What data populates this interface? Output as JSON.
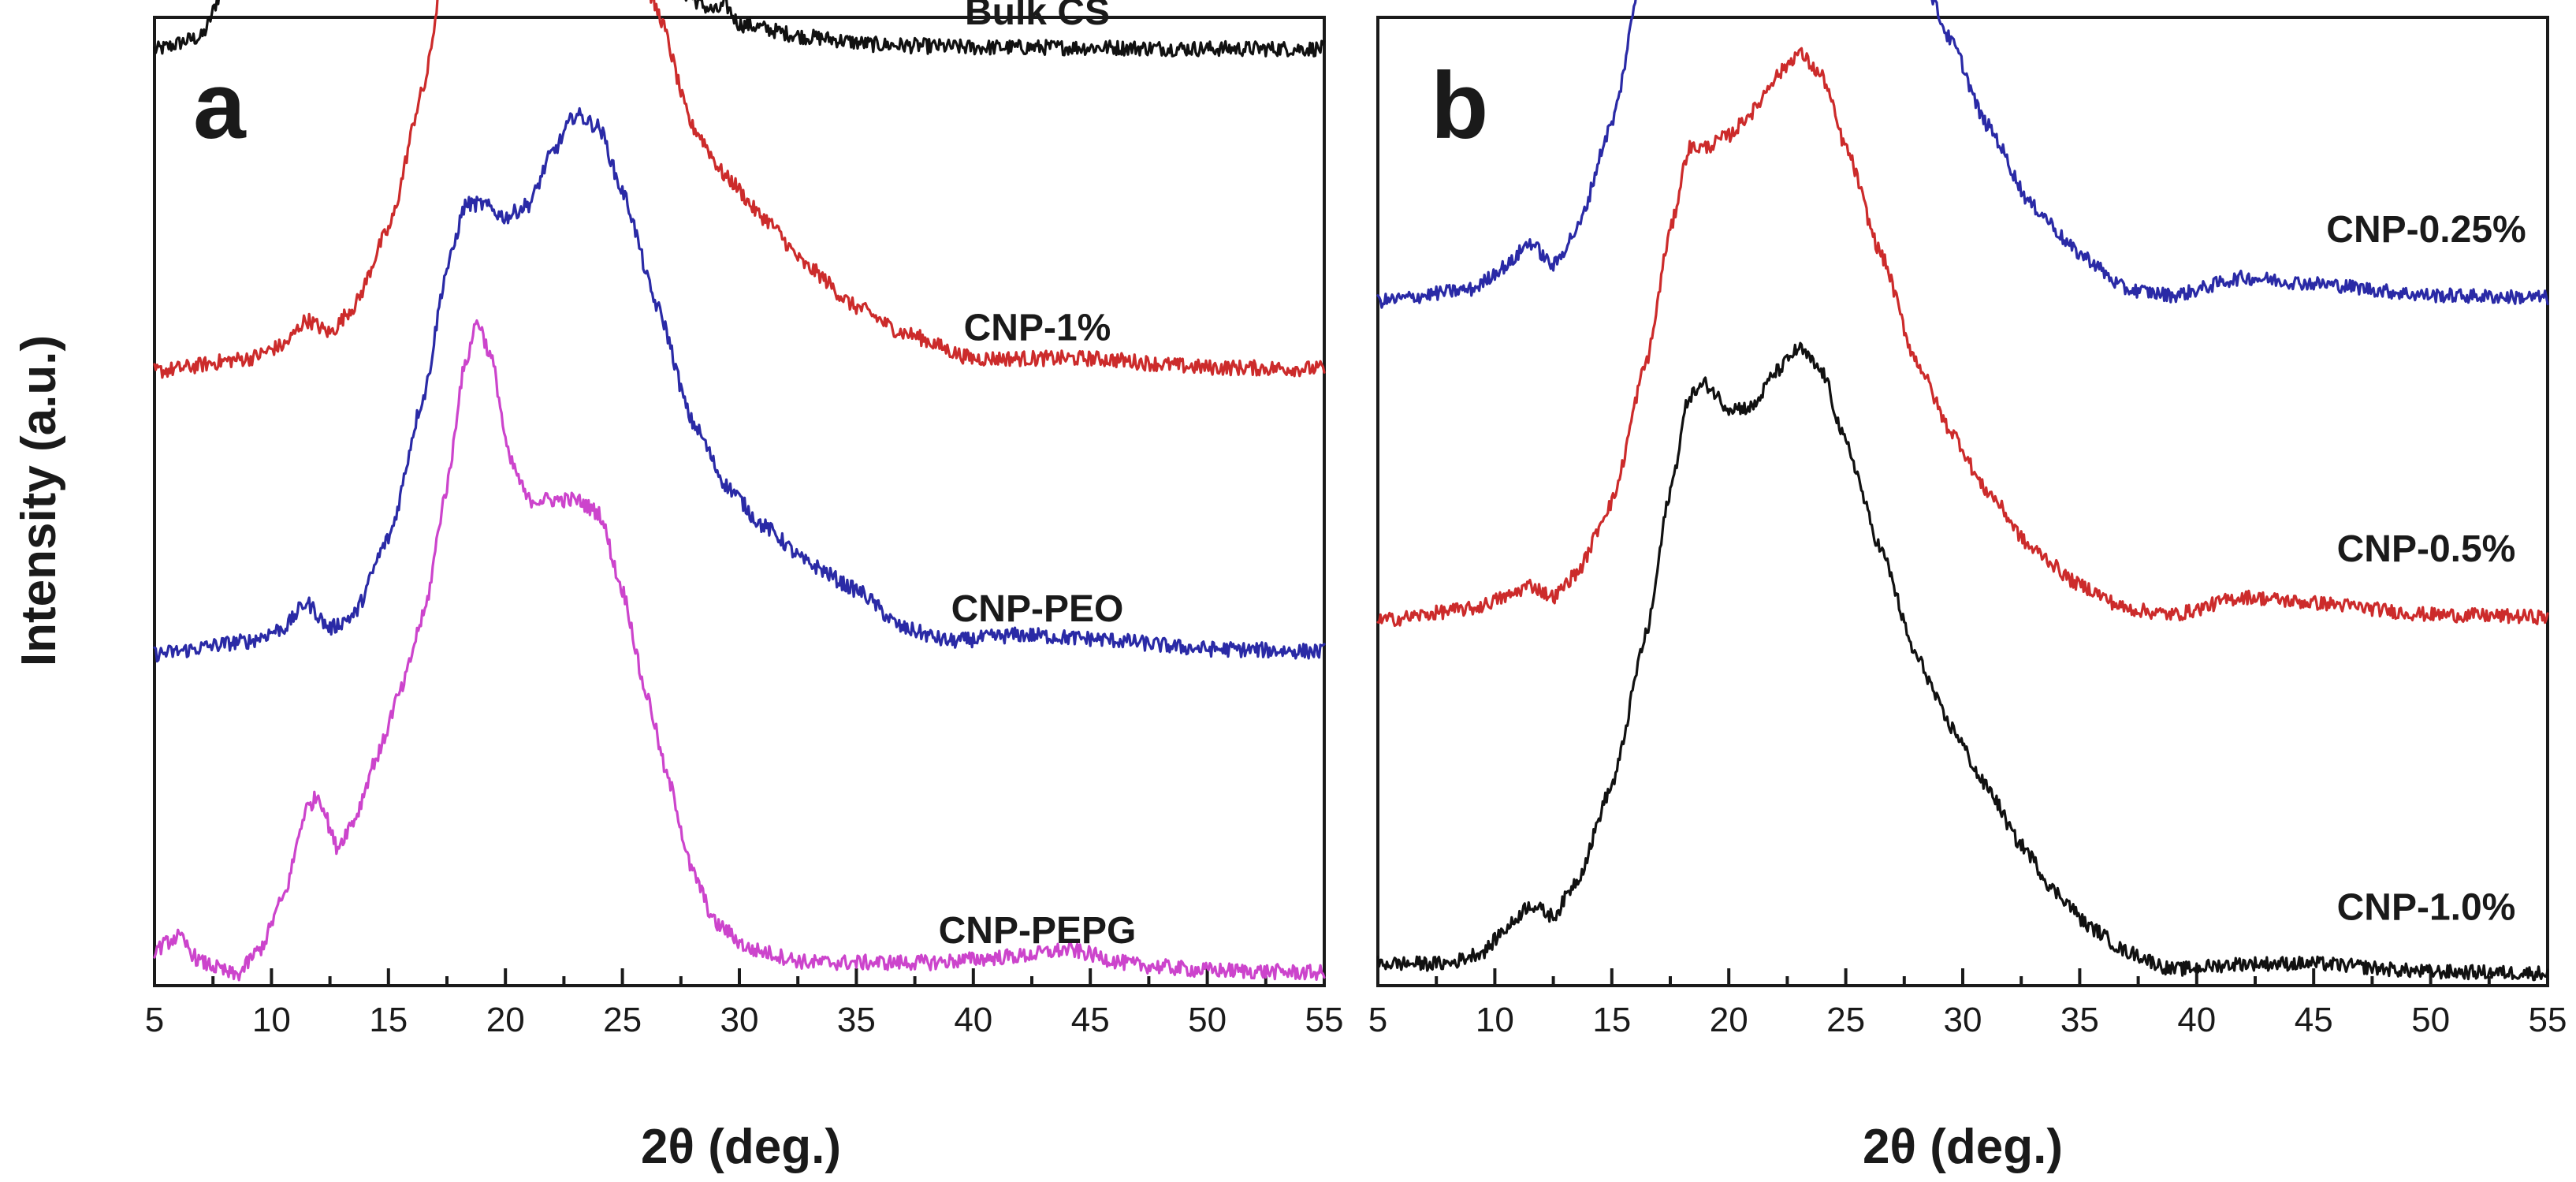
{
  "ylabel": "Intensity (a.u.)",
  "colors": {
    "black": "#111111",
    "red": "#cc2b2b",
    "blue": "#2a2aa6",
    "magenta": "#cc44cc"
  },
  "chart_data": [
    {
      "type": "line",
      "panel": "a",
      "xlabel": "2θ (deg.)",
      "xlim": [
        5,
        55
      ],
      "xticks": [
        "5",
        "10",
        "15",
        "20",
        "25",
        "30",
        "35",
        "40",
        "45",
        "50",
        "55"
      ],
      "grid": false,
      "series": [
        {
          "name": "Bulk CS",
          "color": "#111111",
          "offset": 0.72,
          "points": [
            [
              5,
              0.0
            ],
            [
              7,
              0.01
            ],
            [
              8,
              0.05
            ],
            [
              9,
              0.18
            ],
            [
              9.6,
              0.32
            ],
            [
              10,
              0.35
            ],
            [
              10.6,
              0.3
            ],
            [
              11.5,
              0.17
            ],
            [
              12.5,
              0.1
            ],
            [
              13.5,
              0.14
            ],
            [
              14.5,
              0.22
            ],
            [
              15,
              0.24
            ],
            [
              15.8,
              0.21
            ],
            [
              16.5,
              0.22
            ],
            [
              17.5,
              0.36
            ],
            [
              18.5,
              0.58
            ],
            [
              19.3,
              0.76
            ],
            [
              19.8,
              0.81
            ],
            [
              20.3,
              0.76
            ],
            [
              21,
              0.6
            ],
            [
              21.8,
              0.4
            ],
            [
              22.8,
              0.24
            ],
            [
              24,
              0.15
            ],
            [
              25.5,
              0.09
            ],
            [
              27,
              0.05
            ],
            [
              29,
              0.03
            ],
            [
              29.4,
              0.035
            ],
            [
              30,
              0.02
            ],
            [
              33,
              0.01
            ],
            [
              36,
              0.004
            ],
            [
              40,
              0.002
            ],
            [
              45,
              0.002
            ],
            [
              50,
              0.001
            ],
            [
              55,
              0.001
            ]
          ]
        },
        {
          "name": "CNP-1%",
          "color": "#cc2b2b",
          "offset": 0.47,
          "points": [
            [
              5,
              0.0
            ],
            [
              9,
              0.01
            ],
            [
              10.5,
              0.02
            ],
            [
              11.5,
              0.04
            ],
            [
              12.5,
              0.03
            ],
            [
              13.5,
              0.05
            ],
            [
              15,
              0.11
            ],
            [
              16.5,
              0.22
            ],
            [
              17.5,
              0.33
            ],
            [
              18.3,
              0.4
            ],
            [
              19,
              0.41
            ],
            [
              20,
              0.38
            ],
            [
              21,
              0.38
            ],
            [
              22,
              0.41
            ],
            [
              23,
              0.43
            ],
            [
              24,
              0.42
            ],
            [
              25,
              0.37
            ],
            [
              26.5,
              0.28
            ],
            [
              28,
              0.19
            ],
            [
              29.5,
              0.15
            ],
            [
              31,
              0.12
            ],
            [
              33,
              0.08
            ],
            [
              35,
              0.05
            ],
            [
              37,
              0.03
            ],
            [
              40,
              0.01
            ],
            [
              45,
              0.01
            ],
            [
              50,
              0.003
            ],
            [
              55,
              0.002
            ]
          ]
        },
        {
          "name": "CNP-PEO",
          "color": "#2a2aa6",
          "offset": 0.25,
          "points": [
            [
              5,
              0.0
            ],
            [
              9,
              0.01
            ],
            [
              10.5,
              0.02
            ],
            [
              11.5,
              0.04
            ],
            [
              12.5,
              0.02
            ],
            [
              13.5,
              0.03
            ],
            [
              15,
              0.09
            ],
            [
              16.5,
              0.2
            ],
            [
              17.5,
              0.3
            ],
            [
              18.3,
              0.35
            ],
            [
              19,
              0.35
            ],
            [
              20,
              0.34
            ],
            [
              21,
              0.35
            ],
            [
              22,
              0.39
            ],
            [
              23,
              0.42
            ],
            [
              24,
              0.41
            ],
            [
              25,
              0.36
            ],
            [
              26.5,
              0.27
            ],
            [
              28,
              0.18
            ],
            [
              29.5,
              0.13
            ],
            [
              31,
              0.1
            ],
            [
              33,
              0.07
            ],
            [
              35,
              0.05
            ],
            [
              37,
              0.02
            ],
            [
              39,
              0.01
            ],
            [
              42,
              0.015
            ],
            [
              45,
              0.012
            ],
            [
              50,
              0.004
            ],
            [
              55,
              0.002
            ]
          ]
        },
        {
          "name": "CNP-PEPG",
          "color": "#cc44cc",
          "offset": 0.0,
          "points": [
            [
              5,
              0.02
            ],
            [
              6,
              0.03
            ],
            [
              7,
              0.01
            ],
            [
              8.5,
              0.0
            ],
            [
              9.5,
              0.02
            ],
            [
              10.5,
              0.06
            ],
            [
              11.5,
              0.13
            ],
            [
              12,
              0.14
            ],
            [
              12.8,
              0.1
            ],
            [
              13.5,
              0.12
            ],
            [
              14.5,
              0.17
            ],
            [
              15.5,
              0.22
            ],
            [
              16.5,
              0.28
            ],
            [
              17.5,
              0.38
            ],
            [
              18.2,
              0.47
            ],
            [
              18.8,
              0.51
            ],
            [
              19.4,
              0.48
            ],
            [
              20.2,
              0.4
            ],
            [
              21,
              0.37
            ],
            [
              22,
              0.37
            ],
            [
              23,
              0.37
            ],
            [
              24,
              0.36
            ],
            [
              25,
              0.3
            ],
            [
              26,
              0.22
            ],
            [
              27,
              0.15
            ],
            [
              28,
              0.08
            ],
            [
              29,
              0.04
            ],
            [
              30.5,
              0.02
            ],
            [
              33,
              0.01
            ],
            [
              38,
              0.01
            ],
            [
              42,
              0.015
            ],
            [
              44,
              0.02
            ],
            [
              47,
              0.008
            ],
            [
              50,
              0.004
            ],
            [
              55,
              0.002
            ]
          ]
        }
      ]
    },
    {
      "type": "line",
      "panel": "b",
      "xlabel": "2θ (deg.)",
      "xlim": [
        5,
        55
      ],
      "xticks": [
        "5",
        "10",
        "15",
        "20",
        "25",
        "30",
        "35",
        "40",
        "45",
        "50",
        "55"
      ],
      "grid": false,
      "series": [
        {
          "name": "CNP-0.25%",
          "color": "#2a2aa6",
          "offset": 0.57,
          "points": [
            [
              5,
              0.0
            ],
            [
              9,
              0.01
            ],
            [
              10.5,
              0.03
            ],
            [
              11.5,
              0.05
            ],
            [
              12.5,
              0.03
            ],
            [
              13.5,
              0.06
            ],
            [
              15,
              0.15
            ],
            [
              16.5,
              0.3
            ],
            [
              17.5,
              0.43
            ],
            [
              18.3,
              0.51
            ],
            [
              19,
              0.52
            ],
            [
              20,
              0.51
            ],
            [
              21,
              0.53
            ],
            [
              22,
              0.57
            ],
            [
              23,
              0.59
            ],
            [
              24,
              0.57
            ],
            [
              25,
              0.51
            ],
            [
              26.5,
              0.4
            ],
            [
              28,
              0.29
            ],
            [
              29.5,
              0.22
            ],
            [
              31,
              0.15
            ],
            [
              33,
              0.08
            ],
            [
              35,
              0.04
            ],
            [
              37,
              0.01
            ],
            [
              39,
              0.005
            ],
            [
              42,
              0.02
            ],
            [
              45,
              0.015
            ],
            [
              50,
              0.005
            ],
            [
              55,
              0.003
            ]
          ]
        },
        {
          "name": "CNP-0.5%",
          "color": "#cc2b2b",
          "offset": 0.3,
          "points": [
            [
              5,
              0.0
            ],
            [
              9,
              0.01
            ],
            [
              10.5,
              0.02
            ],
            [
              11.5,
              0.03
            ],
            [
              12.5,
              0.02
            ],
            [
              13.5,
              0.04
            ],
            [
              15,
              0.1
            ],
            [
              16.5,
              0.22
            ],
            [
              17.5,
              0.33
            ],
            [
              18.3,
              0.4
            ],
            [
              19,
              0.4
            ],
            [
              20,
              0.41
            ],
            [
              21,
              0.43
            ],
            [
              22,
              0.46
            ],
            [
              23,
              0.48
            ],
            [
              24,
              0.46
            ],
            [
              25,
              0.4
            ],
            [
              26.5,
              0.31
            ],
            [
              28,
              0.22
            ],
            [
              29.5,
              0.16
            ],
            [
              31,
              0.11
            ],
            [
              33,
              0.06
            ],
            [
              35,
              0.03
            ],
            [
              37,
              0.01
            ],
            [
              39,
              0.005
            ],
            [
              42,
              0.02
            ],
            [
              45,
              0.015
            ],
            [
              50,
              0.005
            ],
            [
              55,
              0.003
            ]
          ]
        },
        {
          "name": "CNP-1.0%",
          "color": "#111111",
          "offset": 0.0,
          "points": [
            [
              5,
              0.01
            ],
            [
              8,
              0.01
            ],
            [
              9.5,
              0.02
            ],
            [
              10.5,
              0.04
            ],
            [
              11.5,
              0.06
            ],
            [
              12.5,
              0.05
            ],
            [
              13.5,
              0.08
            ],
            [
              15,
              0.16
            ],
            [
              16.5,
              0.29
            ],
            [
              17.5,
              0.41
            ],
            [
              18.3,
              0.49
            ],
            [
              19,
              0.5
            ],
            [
              20,
              0.48
            ],
            [
              21,
              0.48
            ],
            [
              22,
              0.51
            ],
            [
              23,
              0.53
            ],
            [
              24,
              0.51
            ],
            [
              25,
              0.45
            ],
            [
              26.5,
              0.36
            ],
            [
              28,
              0.27
            ],
            [
              29.5,
              0.21
            ],
            [
              31,
              0.16
            ],
            [
              32.5,
              0.11
            ],
            [
              34,
              0.07
            ],
            [
              35.5,
              0.04
            ],
            [
              37,
              0.02
            ],
            [
              39,
              0.005
            ],
            [
              42,
              0.01
            ],
            [
              45,
              0.01
            ],
            [
              50,
              0.003
            ],
            [
              55,
              0.002
            ]
          ]
        }
      ]
    }
  ]
}
